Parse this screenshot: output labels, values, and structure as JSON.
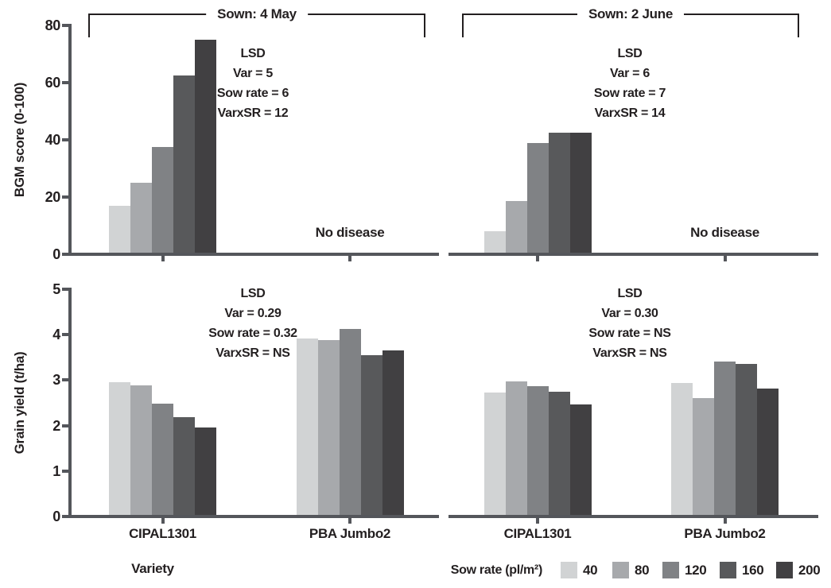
{
  "colors": {
    "text": "#231f20",
    "axis": "#54565b",
    "background": "#ffffff"
  },
  "x_axis_title": "Variety",
  "legend": {
    "title": "Sow rate (pl/m²)",
    "items": [
      {
        "label": "40",
        "color": "#d1d3d4"
      },
      {
        "label": "80",
        "color": "#a7a9ac"
      },
      {
        "label": "120",
        "color": "#808285"
      },
      {
        "label": "160",
        "color": "#58595b"
      },
      {
        "label": "200",
        "color": "#414042"
      }
    ]
  },
  "chart_data": [
    {
      "type": "bar",
      "id": "bgm-score-sown-4-may",
      "row": "top",
      "col": "left",
      "title": "Sown: 4 May",
      "ylabel": "BGM score (0-100)",
      "ylim": [
        0,
        80
      ],
      "yticks": [
        0,
        20,
        40,
        60,
        80
      ],
      "categories": [
        "CIPAL1301",
        "PBA Jumbo2"
      ],
      "series": [
        {
          "name": "40",
          "values": [
            17,
            null
          ]
        },
        {
          "name": "80",
          "values": [
            25,
            null
          ]
        },
        {
          "name": "120",
          "values": [
            37.5,
            null
          ]
        },
        {
          "name": "160",
          "values": [
            62.5,
            null
          ]
        },
        {
          "name": "200",
          "values": [
            75,
            null
          ]
        }
      ],
      "annotations": [
        {
          "text": "No disease",
          "category": "PBA Jumbo2"
        }
      ],
      "lsd_lines": [
        "LSD",
        "Var = 5",
        "Sow rate = 6",
        "VarxSR = 12"
      ]
    },
    {
      "type": "bar",
      "id": "bgm-score-sown-2-june",
      "row": "top",
      "col": "right",
      "title": "Sown: 2 June",
      "ylabel": "BGM score (0-100)",
      "ylim": [
        0,
        80
      ],
      "yticks": [
        0,
        20,
        40,
        60,
        80
      ],
      "categories": [
        "CIPAL1301",
        "PBA Jumbo2"
      ],
      "series": [
        {
          "name": "40",
          "values": [
            8,
            null
          ]
        },
        {
          "name": "80",
          "values": [
            18.5,
            null
          ]
        },
        {
          "name": "120",
          "values": [
            39,
            null
          ]
        },
        {
          "name": "160",
          "values": [
            42.5,
            null
          ]
        },
        {
          "name": "200",
          "values": [
            42.5,
            null
          ]
        }
      ],
      "annotations": [
        {
          "text": "No disease",
          "category": "PBA Jumbo2"
        }
      ],
      "lsd_lines": [
        "LSD",
        "Var = 6",
        "Sow rate = 7",
        "VarxSR = 14"
      ]
    },
    {
      "type": "bar",
      "id": "grain-yield-sown-4-may",
      "row": "bottom",
      "col": "left",
      "title": "",
      "ylabel": "Grain yield (t/ha)",
      "ylim": [
        0,
        5
      ],
      "yticks": [
        0,
        1,
        2,
        3,
        4,
        5
      ],
      "categories": [
        "CIPAL1301",
        "PBA Jumbo2"
      ],
      "series": [
        {
          "name": "40",
          "values": [
            2.95,
            3.92
          ]
        },
        {
          "name": "80",
          "values": [
            2.88,
            3.88
          ]
        },
        {
          "name": "120",
          "values": [
            2.48,
            4.13
          ]
        },
        {
          "name": "160",
          "values": [
            2.18,
            3.55
          ]
        },
        {
          "name": "200",
          "values": [
            1.95,
            3.65
          ]
        }
      ],
      "annotations": [],
      "lsd_lines": [
        "LSD",
        "Var = 0.29",
        "Sow rate = 0.32",
        "VarxSR = NS"
      ]
    },
    {
      "type": "bar",
      "id": "grain-yield-sown-2-june",
      "row": "bottom",
      "col": "right",
      "title": "",
      "ylabel": "Grain yield (t/ha)",
      "ylim": [
        0,
        5
      ],
      "yticks": [
        0,
        1,
        2,
        3,
        4,
        5
      ],
      "categories": [
        "CIPAL1301",
        "PBA Jumbo2"
      ],
      "series": [
        {
          "name": "40",
          "values": [
            2.73,
            2.94
          ]
        },
        {
          "name": "80",
          "values": [
            2.98,
            2.6
          ]
        },
        {
          "name": "120",
          "values": [
            2.86,
            3.41
          ]
        },
        {
          "name": "160",
          "values": [
            2.75,
            3.36
          ]
        },
        {
          "name": "200",
          "values": [
            2.46,
            2.82
          ]
        }
      ],
      "annotations": [],
      "lsd_lines": [
        "LSD",
        "Var = 0.30",
        "Sow rate = NS",
        "VarxSR = NS"
      ]
    }
  ]
}
